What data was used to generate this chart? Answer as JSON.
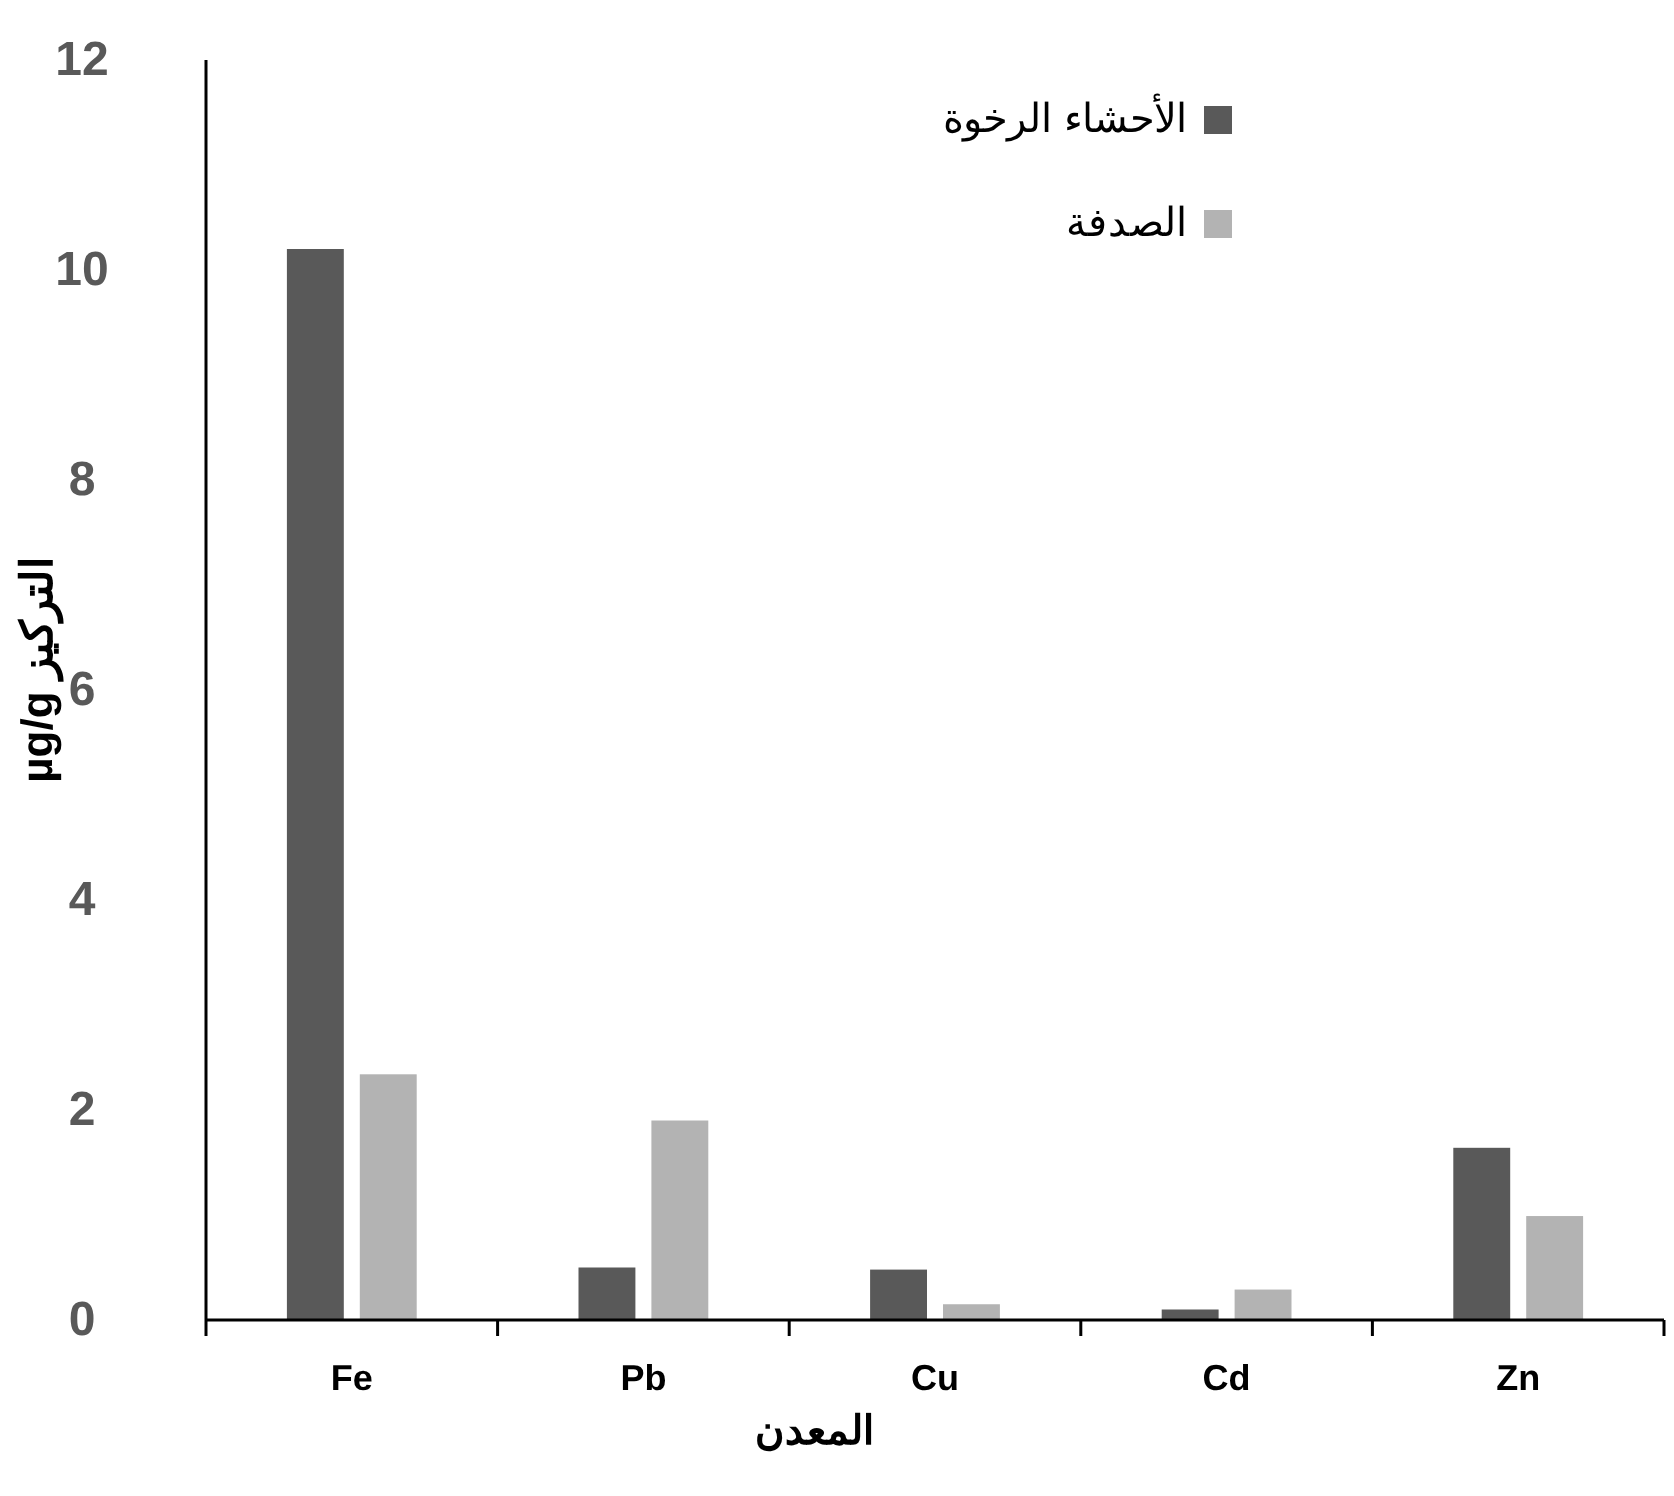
{
  "chart_data": {
    "type": "bar",
    "xlabel": "المعدن",
    "ylabel": "التركيز µg/g",
    "categories": [
      "Fe",
      "Pb",
      "Cu",
      "Cd",
      "Zn"
    ],
    "series": [
      {
        "name": "الأحشاء الرخوة",
        "color": "#595959",
        "values": [
          10.2,
          0.5,
          0.48,
          0.1,
          1.64
        ]
      },
      {
        "name": "الصدفة",
        "color": "#b3b3b3",
        "values": [
          2.34,
          1.9,
          0.15,
          0.29,
          0.99
        ]
      }
    ],
    "ylim": [
      0,
      12
    ],
    "yticks": [
      0,
      2,
      4,
      6,
      8,
      10,
      12
    ],
    "grid": false,
    "legend": "top right"
  }
}
